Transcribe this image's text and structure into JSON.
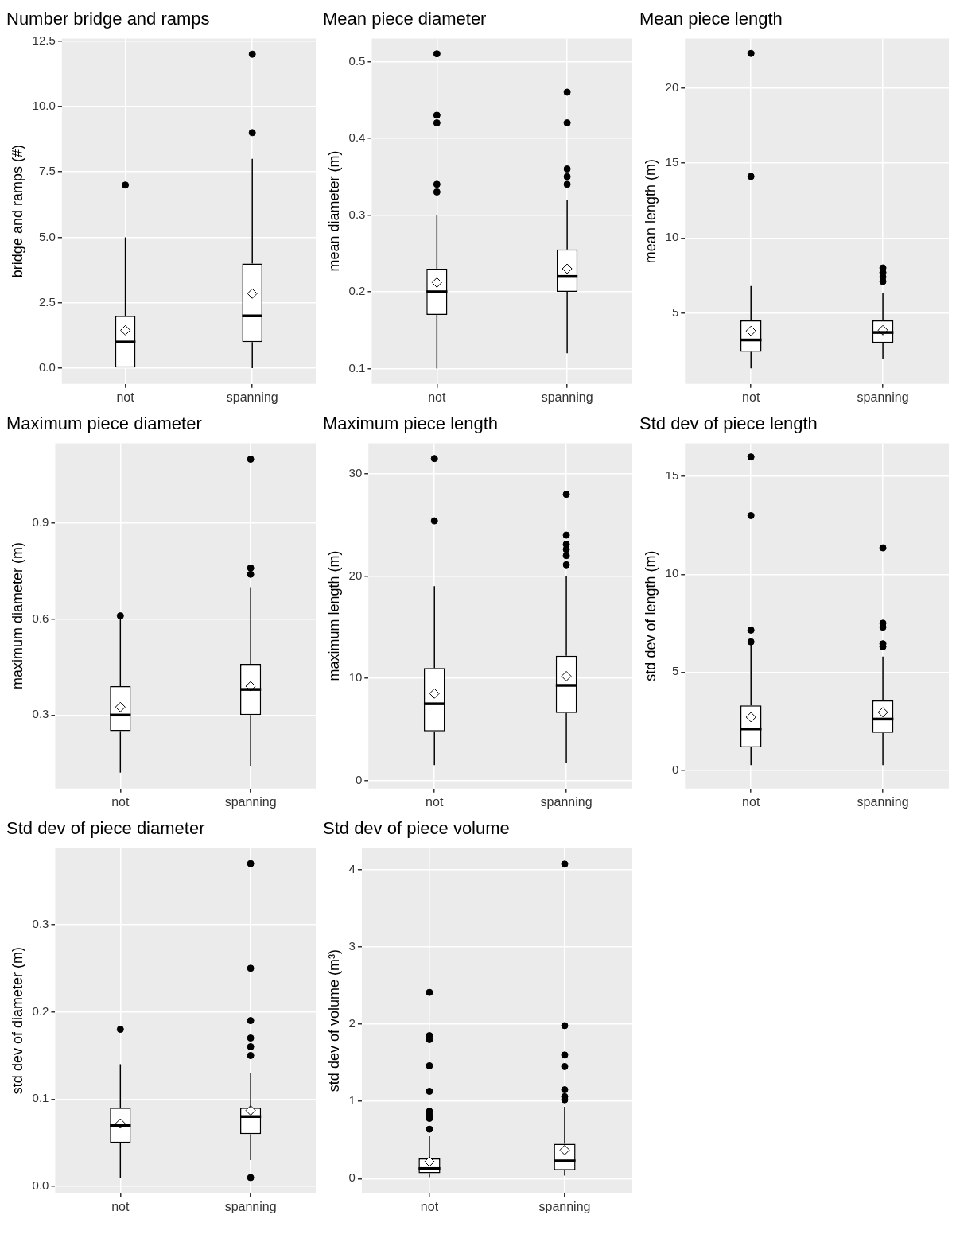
{
  "chart_data": [
    {
      "type": "box",
      "title": "Number bridge and ramps",
      "ylabel": "bridge and ramps (#)",
      "categories": [
        "not",
        "spanning"
      ],
      "ylim": [
        -0.6,
        12.6
      ],
      "yticks": [
        {
          "value": 0,
          "label": "0.0"
        },
        2.5,
        {
          "value": 5,
          "label": "5.0"
        },
        7.5,
        {
          "value": 10,
          "label": "10.0"
        },
        12.5
      ],
      "grid": true,
      "boxes": [
        {
          "low": 0,
          "q1": 0,
          "median": 1,
          "q3": 2,
          "high": 5,
          "mean": 1.45,
          "outliers": [
            7
          ]
        },
        {
          "low": 0,
          "q1": 1,
          "median": 2,
          "q3": 4,
          "high": 8,
          "mean": 2.85,
          "outliers": [
            9,
            12
          ]
        }
      ]
    },
    {
      "type": "box",
      "title": "Mean piece diameter",
      "ylabel": "mean diameter (m)",
      "categories": [
        "not",
        "spanning"
      ],
      "ylim": [
        0.08,
        0.53
      ],
      "yticks": [
        0.1,
        0.2,
        0.3,
        0.4,
        0.5
      ],
      "grid": true,
      "boxes": [
        {
          "low": 0.1,
          "q1": 0.17,
          "median": 0.2,
          "q3": 0.23,
          "high": 0.3,
          "mean": 0.212,
          "outliers": [
            0.33,
            0.34,
            0.42,
            0.43,
            0.51
          ]
        },
        {
          "low": 0.12,
          "q1": 0.2,
          "median": 0.22,
          "q3": 0.255,
          "high": 0.32,
          "mean": 0.23,
          "outliers": [
            0.34,
            0.35,
            0.36,
            0.42,
            0.46
          ]
        }
      ]
    },
    {
      "type": "box",
      "title": "Mean piece length",
      "ylabel": "mean length (m)",
      "categories": [
        "not",
        "spanning"
      ],
      "ylim": [
        0.27,
        23.3
      ],
      "yticks": [
        5,
        10,
        15,
        20
      ],
      "grid": true,
      "boxes": [
        {
          "low": 1.3,
          "q1": 2.4,
          "median": 3.2,
          "q3": 4.5,
          "high": 6.8,
          "mean": 3.8,
          "outliers": [
            14.1,
            22.3
          ]
        },
        {
          "low": 1.9,
          "q1": 3.0,
          "median": 3.7,
          "q3": 4.5,
          "high": 6.3,
          "mean": 3.85,
          "outliers": [
            7.1,
            7.4,
            7.7,
            8.0
          ]
        }
      ]
    },
    {
      "type": "box",
      "title": "Maximum piece diameter",
      "ylabel": "maximum diameter (m)",
      "categories": [
        "not",
        "spanning"
      ],
      "ylim": [
        0.07,
        1.15
      ],
      "yticks": [
        0.3,
        0.6,
        0.9
      ],
      "grid": true,
      "boxes": [
        {
          "low": 0.12,
          "q1": 0.25,
          "median": 0.3,
          "q3": 0.39,
          "high": 0.6,
          "mean": 0.325,
          "outliers": [
            0.61
          ]
        },
        {
          "low": 0.14,
          "q1": 0.3,
          "median": 0.38,
          "q3": 0.46,
          "high": 0.7,
          "mean": 0.39,
          "outliers": [
            0.74,
            0.76,
            1.1
          ]
        }
      ]
    },
    {
      "type": "box",
      "title": "Maximum piece length",
      "ylabel": "maximum length (m)",
      "categories": [
        "not",
        "spanning"
      ],
      "ylim": [
        -0.8,
        33
      ],
      "yticks": [
        0,
        10,
        20,
        30
      ],
      "grid": true,
      "boxes": [
        {
          "low": 1.5,
          "q1": 4.8,
          "median": 7.5,
          "q3": 11,
          "high": 19,
          "mean": 8.5,
          "outliers": [
            25.4,
            31.5
          ]
        },
        {
          "low": 1.7,
          "q1": 6.6,
          "median": 9.3,
          "q3": 12.2,
          "high": 20,
          "mean": 10.2,
          "outliers": [
            21.1,
            22.0,
            22.6,
            23.1,
            24.0,
            28.0
          ]
        }
      ]
    },
    {
      "type": "box",
      "title": "Std dev of piece length",
      "ylabel": "std dev of length (m)",
      "categories": [
        "not",
        "spanning"
      ],
      "ylim": [
        -0.95,
        16.7
      ],
      "yticks": [
        0,
        5,
        10,
        15
      ],
      "grid": true,
      "boxes": [
        {
          "low": 0.25,
          "q1": 1.15,
          "median": 2.1,
          "q3": 3.3,
          "high": 6.4,
          "mean": 2.7,
          "outliers": [
            6.55,
            7.15,
            13.0,
            16.0
          ]
        },
        {
          "low": 0.25,
          "q1": 1.9,
          "median": 2.6,
          "q3": 3.55,
          "high": 5.8,
          "mean": 2.95,
          "outliers": [
            6.3,
            6.45,
            7.3,
            7.5,
            11.35
          ]
        }
      ]
    },
    {
      "type": "box",
      "title": "Std dev of piece diameter",
      "ylabel": "std dev of diameter (m)",
      "categories": [
        "not",
        "spanning"
      ],
      "ylim": [
        -0.008,
        0.388
      ],
      "yticks": [
        {
          "value": 0,
          "label": "0.0"
        },
        0.1,
        0.2,
        0.3
      ],
      "grid": true,
      "boxes": [
        {
          "low": 0.01,
          "q1": 0.05,
          "median": 0.07,
          "q3": 0.09,
          "high": 0.14,
          "mean": 0.072,
          "outliers": [
            0.18
          ]
        },
        {
          "low": 0.03,
          "q1": 0.06,
          "median": 0.08,
          "q3": 0.09,
          "high": 0.13,
          "mean": 0.087,
          "outliers": [
            0.01,
            0.15,
            0.16,
            0.17,
            0.19,
            0.25,
            0.37
          ]
        }
      ]
    },
    {
      "type": "box",
      "title": "Std dev of piece volume",
      "ylabel": "std dev of volume (m³)",
      "categories": [
        "not",
        "spanning"
      ],
      "ylim": [
        -0.19,
        4.28
      ],
      "yticks": [
        0,
        1,
        2,
        3,
        4
      ],
      "grid": true,
      "boxes": [
        {
          "low": 0.02,
          "q1": 0.07,
          "median": 0.13,
          "q3": 0.26,
          "high": 0.55,
          "mean": 0.22,
          "outliers": [
            0.64,
            0.78,
            0.82,
            0.87,
            1.13,
            1.46,
            1.8,
            1.85,
            2.41
          ]
        },
        {
          "low": 0.04,
          "q1": 0.11,
          "median": 0.23,
          "q3": 0.45,
          "high": 0.93,
          "mean": 0.37,
          "outliers": [
            1.02,
            1.06,
            1.15,
            1.45,
            1.6,
            1.98,
            4.07
          ]
        }
      ]
    }
  ]
}
